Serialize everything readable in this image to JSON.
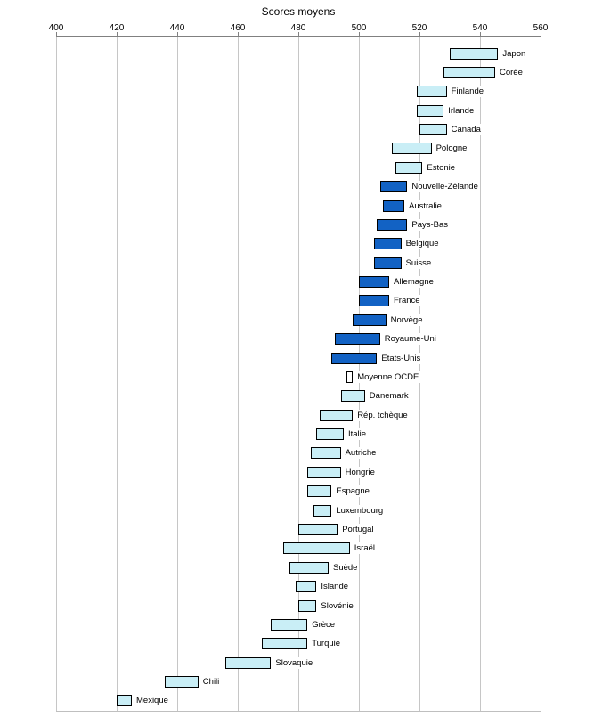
{
  "chart_data": {
    "type": "bar",
    "orientation": "horizontal-range",
    "title": "Scores moyens",
    "xlabel": "Scores moyens",
    "xlim": [
      400,
      560
    ],
    "ticks": [
      400,
      420,
      440,
      460,
      480,
      500,
      520,
      540,
      560
    ],
    "grid": true,
    "legend": "none",
    "series": [
      {
        "label": "Japon",
        "low": 530,
        "high": 546,
        "style": "light"
      },
      {
        "label": "Corée",
        "low": 528,
        "high": 545,
        "style": "light"
      },
      {
        "label": "Finlande",
        "low": 519,
        "high": 529,
        "style": "light"
      },
      {
        "label": "Irlande",
        "low": 519,
        "high": 528,
        "style": "light"
      },
      {
        "label": "Canada",
        "low": 520,
        "high": 529,
        "style": "light"
      },
      {
        "label": "Pologne",
        "low": 511,
        "high": 524,
        "style": "light"
      },
      {
        "label": "Estonie",
        "low": 512,
        "high": 521,
        "style": "light"
      },
      {
        "label": "Nouvelle-Zélande",
        "low": 507,
        "high": 516,
        "style": "dark"
      },
      {
        "label": "Australie",
        "low": 508,
        "high": 515,
        "style": "dark"
      },
      {
        "label": "Pays-Bas",
        "low": 506,
        "high": 516,
        "style": "dark"
      },
      {
        "label": "Belgique",
        "low": 505,
        "high": 514,
        "style": "dark"
      },
      {
        "label": "Suisse",
        "low": 505,
        "high": 514,
        "style": "dark"
      },
      {
        "label": "Allemagne",
        "low": 500,
        "high": 510,
        "style": "dark"
      },
      {
        "label": "France",
        "low": 500,
        "high": 510,
        "style": "dark"
      },
      {
        "label": "Norvège",
        "low": 498,
        "high": 509,
        "style": "dark"
      },
      {
        "label": "Royaume-Uni",
        "low": 492,
        "high": 507,
        "style": "dark"
      },
      {
        "label": "Etats-Unis",
        "low": 491,
        "high": 506,
        "style": "dark"
      },
      {
        "label": "Moyenne OCDE",
        "low": 496,
        "high": 498,
        "style": "neutral"
      },
      {
        "label": "Danemark",
        "low": 494,
        "high": 502,
        "style": "light"
      },
      {
        "label": "Rép. tchèque",
        "low": 487,
        "high": 498,
        "style": "light"
      },
      {
        "label": "Italie",
        "low": 486,
        "high": 495,
        "style": "light"
      },
      {
        "label": "Autriche",
        "low": 484,
        "high": 494,
        "style": "light"
      },
      {
        "label": "Hongrie",
        "low": 483,
        "high": 494,
        "style": "light"
      },
      {
        "label": "Espagne",
        "low": 483,
        "high": 491,
        "style": "light"
      },
      {
        "label": "Luxembourg",
        "low": 485,
        "high": 491,
        "style": "light"
      },
      {
        "label": "Portugal",
        "low": 480,
        "high": 493,
        "style": "light"
      },
      {
        "label": "Israël",
        "low": 475,
        "high": 497,
        "style": "light"
      },
      {
        "label": "Suède",
        "low": 477,
        "high": 490,
        "style": "light"
      },
      {
        "label": "Islande",
        "low": 479,
        "high": 486,
        "style": "light"
      },
      {
        "label": "Slovénie",
        "low": 480,
        "high": 486,
        "style": "light"
      },
      {
        "label": "Grèce",
        "low": 471,
        "high": 483,
        "style": "light"
      },
      {
        "label": "Turquie",
        "low": 468,
        "high": 483,
        "style": "light"
      },
      {
        "label": "Slovaquie",
        "low": 456,
        "high": 471,
        "style": "light"
      },
      {
        "label": "Chili",
        "low": 436,
        "high": 447,
        "style": "light"
      },
      {
        "label": "Mexique",
        "low": 420,
        "high": 425,
        "style": "light"
      }
    ]
  },
  "colors": {
    "light_bar": "#C9EEF6",
    "dark_bar": "#1262C4",
    "neutral_bar": "#FFFFFF",
    "bar_border": "#000000",
    "gridline": "#C6C6C6",
    "axis": "#808080",
    "text": "#000000",
    "background": "#FFFFFF"
  }
}
